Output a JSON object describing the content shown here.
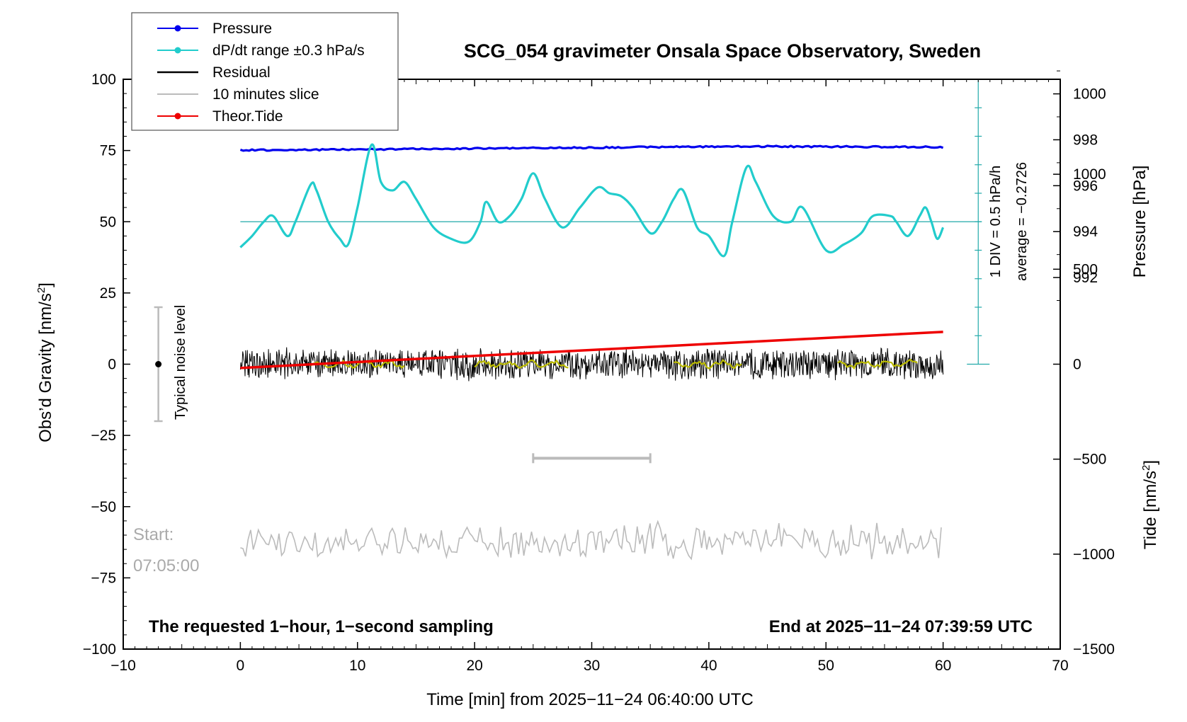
{
  "chart_data": {
    "type": "line",
    "title": "SCG_054 gravimeter Onsala Space Observatory, Sweden",
    "xlabel": "Time [min] from 2025−11−24 06:40:00 UTC",
    "ylabel_left": "Obs’d Gravity [nm/s",
    "ylabel_left_sup": "2",
    "ylabel_left_close": "]",
    "ylabel_right_pressure": "Pressure [hPa]",
    "ylabel_right_tide": "Tide [nm/s",
    "ylabel_right_tide_sup": "2",
    "ylabel_right_tide_close": "]",
    "xlim": [
      -10,
      70
    ],
    "ylim": [
      -100,
      100
    ],
    "pressure_lim": [
      990,
      1002
    ],
    "tide_lim": [
      -1500,
      1500
    ],
    "x_ticks": [
      -10,
      0,
      10,
      20,
      30,
      40,
      50,
      60,
      70
    ],
    "x_tick_labels": [
      "−10",
      "0",
      "10",
      "20",
      "30",
      "40",
      "50",
      "60",
      "70"
    ],
    "y_ticks": [
      -100,
      -75,
      -50,
      -25,
      0,
      25,
      50,
      75,
      100
    ],
    "y_tick_labels": [
      "−100",
      "−75",
      "−50",
      "−25",
      "0",
      "25",
      "50",
      "75",
      "100"
    ],
    "pressure_ticks": [
      992,
      994,
      996,
      998,
      1000
    ],
    "pressure_tick_labels": [
      "992",
      "994",
      "996",
      "998",
      "1000"
    ],
    "tide_ticks": [
      -1500,
      -1000,
      -500,
      0,
      500,
      1000
    ],
    "tide_tick_labels": [
      "−1500",
      "−1000",
      "−500",
      "0",
      "500",
      "1000"
    ],
    "legend": {
      "position": "top-left",
      "entries": [
        {
          "label": "Pressure",
          "color": "#0000ee",
          "marker": true
        },
        {
          "label": "dP/dt range ±0.3 hPa/s",
          "color": "#22cccc",
          "marker": true
        },
        {
          "label": "Residual",
          "color": "#000000",
          "marker": false
        },
        {
          "label": "10 minutes slice",
          "color": "#bbbbbb",
          "marker": false
        },
        {
          "label": "Theor.Tide",
          "color": "#ee0000",
          "marker": true
        }
      ]
    },
    "series": [
      {
        "name": "Pressure",
        "color": "#0000ee",
        "units": "hPa",
        "x": [
          0,
          5,
          10,
          15,
          20,
          25,
          30,
          35,
          40,
          45,
          50,
          55,
          60
        ],
        "values": [
          997.55,
          997.56,
          997.58,
          997.6,
          997.62,
          997.64,
          997.66,
          997.68,
          997.7,
          997.71,
          997.7,
          997.69,
          997.68
        ]
      },
      {
        "name": "dP/dt range ±0.3 hPa/s",
        "color": "#22cccc",
        "units": "gravity-axis",
        "x": [
          0,
          1,
          2,
          2.8,
          4,
          4.7,
          6,
          6.5,
          7.5,
          8.5,
          9.2,
          10,
          11.2,
          12,
          13,
          14,
          15,
          16.5,
          18,
          19.5,
          20.5,
          21,
          22,
          23,
          24,
          25,
          26,
          27.5,
          29,
          30.5,
          31.5,
          32.5,
          33.5,
          35,
          36,
          37,
          37.8,
          39,
          40,
          41.3,
          42,
          43.2,
          44,
          45.5,
          47,
          48,
          50,
          51.5,
          53,
          54,
          55.5,
          56,
          57,
          58,
          58.5,
          59,
          59.5,
          60
        ],
        "values": [
          41,
          45,
          50,
          52,
          45,
          50,
          63,
          61,
          50,
          44,
          42,
          55,
          77,
          64,
          61,
          64,
          58,
          48,
          44,
          43,
          50,
          57,
          50,
          52,
          58,
          67,
          58,
          48,
          55,
          62,
          60,
          59,
          55,
          46,
          50,
          58,
          61,
          48,
          45,
          38,
          50,
          69,
          64,
          52,
          50,
          55,
          40,
          42,
          46,
          52,
          52,
          50,
          45,
          52,
          55,
          50,
          44,
          48
        ]
      },
      {
        "name": "Residual",
        "color": "#000000",
        "units": "nm/s2",
        "x_range": [
          0,
          60
        ],
        "level": 0,
        "noise_amplitude": 6
      },
      {
        "name": "10 minutes slice",
        "color": "#bbbbbb",
        "units": "nm/s2",
        "x_range": [
          0,
          60
        ],
        "level": -62,
        "noise_amplitude": 7
      },
      {
        "name": "Theor.Tide",
        "color": "#ee0000",
        "units": "nm/s2",
        "x": [
          0,
          60
        ],
        "values": [
          -20,
          170
        ]
      }
    ],
    "smoothed_segments": [
      [
        6,
        14
      ],
      [
        20,
        28
      ],
      [
        37,
        43
      ],
      [
        51,
        58
      ]
    ],
    "smoothed_color": "#bbbb00",
    "dpdt_reference_level": 50,
    "dpdt_scale": {
      "x": 63,
      "y_range": [
        0,
        100
      ],
      "tick_count": 11
    },
    "dpdt_note": "1 DIV = 0.5 hPa/h",
    "average_note": "average = −0.2726",
    "noise_bar": {
      "x": -7,
      "range": [
        -20,
        20
      ],
      "center": 0,
      "label": "Typical noise level"
    },
    "slice_bar": {
      "x_range": [
        25,
        35
      ],
      "y": -33
    },
    "start_label": "Start:",
    "start_time": "07:05:00",
    "footer_left": "The requested 1−hour, 1−second sampling",
    "footer_right": "End at 2025−11−24 07:39:59 UTC"
  }
}
